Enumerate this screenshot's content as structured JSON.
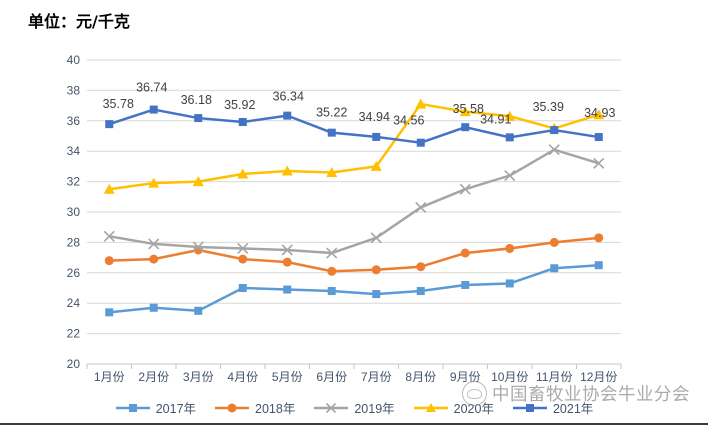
{
  "title": "单位：元/千克",
  "watermark": {
    "text": "中国畜牧业协会牛业分会"
  },
  "colors": {
    "series_2017": "#5B9BD5",
    "series_2018": "#ED7D31",
    "series_2019": "#A5A5A5",
    "series_2020": "#FFC000",
    "series_2021": "#4472C4",
    "gridline": "#D9D9D9",
    "axis": "#C6C6C6",
    "tick_label": "#44546A",
    "data_label": "#404040"
  },
  "chart_data": {
    "type": "line",
    "title": "单位：元/千克",
    "categories": [
      "1月份",
      "2月份",
      "3月份",
      "4月份",
      "5月份",
      "6月份",
      "7月份",
      "8月份",
      "9月份",
      "10月份",
      "11月份",
      "12月份"
    ],
    "series": [
      {
        "name": "2017年",
        "color": "#5B9BD5",
        "marker": "square",
        "values": [
          23.4,
          23.7,
          23.5,
          25.0,
          24.9,
          24.8,
          24.6,
          24.8,
          25.2,
          25.3,
          26.3,
          26.5
        ]
      },
      {
        "name": "2018年",
        "color": "#ED7D31",
        "marker": "circle",
        "values": [
          26.8,
          26.9,
          27.5,
          26.9,
          26.7,
          26.1,
          26.2,
          26.4,
          27.3,
          27.6,
          28.0,
          28.3
        ]
      },
      {
        "name": "2019年",
        "color": "#A5A5A5",
        "marker": "x",
        "values": [
          28.4,
          27.9,
          27.7,
          27.6,
          27.5,
          27.3,
          28.3,
          30.3,
          31.5,
          32.4,
          34.1,
          33.2
        ]
      },
      {
        "name": "2020年",
        "color": "#FFC000",
        "marker": "triangle",
        "values": [
          31.5,
          31.9,
          32.0,
          32.5,
          32.7,
          32.6,
          33.0,
          37.1,
          36.6,
          36.3,
          35.5,
          36.4
        ]
      },
      {
        "name": "2021年",
        "color": "#4472C4",
        "marker": "square",
        "values": [
          35.78,
          36.74,
          36.18,
          35.92,
          36.34,
          35.22,
          34.94,
          34.56,
          35.58,
          34.91,
          35.39,
          34.93
        ],
        "data_labels": [
          "35.78",
          "36.74",
          "36.18",
          "35.92",
          "36.34",
          "35.22",
          "34.94",
          "34.56",
          "35.58",
          "34.91",
          "35.39",
          "34.93"
        ]
      }
    ],
    "xlabel": "",
    "ylabel": "",
    "ylim": [
      20,
      40
    ],
    "y_ticks": [
      20,
      22,
      24,
      26,
      28,
      30,
      32,
      34,
      36,
      38,
      40
    ],
    "grid": true,
    "legend_position": "bottom"
  }
}
